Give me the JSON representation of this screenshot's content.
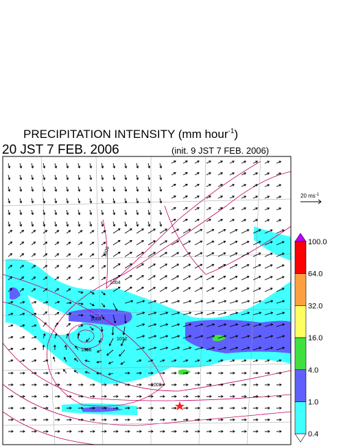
{
  "header": {
    "title": "PRECIPITATION INTENSITY (mm hour",
    "title_exponent": "-1",
    "title_close": ")",
    "valid_time": "20 JST 7 FEB. 2006",
    "init_time": "(init. 9 JST 7 FEB. 2006)"
  },
  "vector_reference": {
    "label": "20 ms",
    "exponent": "-1"
  },
  "colorbar": {
    "labels": [
      "100.0",
      "64.0",
      "32.0",
      "16.0",
      "4.0",
      "1.0",
      "0.4"
    ],
    "colors": [
      "#c000ff",
      "#ff0000",
      "#ffa040",
      "#ffff60",
      "#40e040",
      "#6060ff",
      "#40ffff",
      "#ffffff"
    ]
  },
  "isobar_labels": [
    "1000",
    "1004",
    "1008",
    "1012",
    "1016",
    "1008"
  ]
}
